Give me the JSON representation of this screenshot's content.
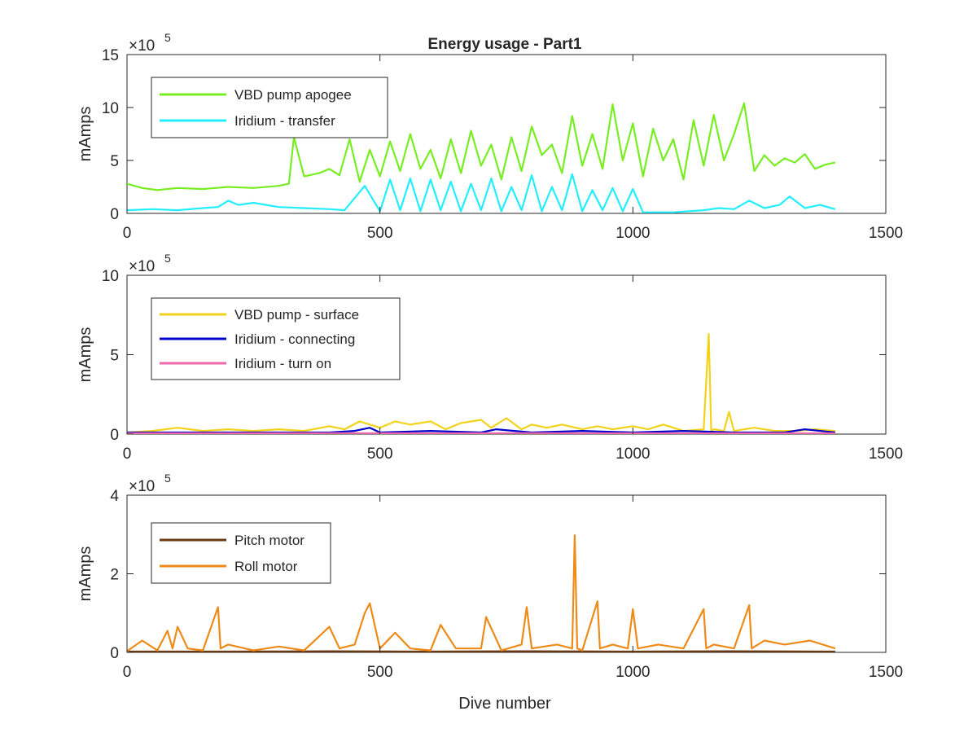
{
  "figure": {
    "title": "Energy usage - Part1",
    "xlabel": "Dive number"
  },
  "chart_data": [
    {
      "type": "line",
      "title": "Energy usage - Part1",
      "xlabel": "",
      "ylabel": "mAmps",
      "y_exponent_label": "×10",
      "y_exponent_power": "5",
      "y_multiplier": 100000,
      "xlim": [
        0,
        1500
      ],
      "ylim": [
        0,
        15
      ],
      "xticks": [
        0,
        500,
        1000,
        1500
      ],
      "xtick_labels": [
        "0",
        "500",
        "1000",
        "1500"
      ],
      "yticks": [
        0,
        5,
        10,
        15
      ],
      "ytick_labels": [
        "0",
        "5",
        "10",
        "15"
      ],
      "grid": false,
      "legend_position": "top-left",
      "series": [
        {
          "name": "VBD pump apogee",
          "color": "#77ee22",
          "x": [
            0,
            30,
            60,
            100,
            150,
            200,
            250,
            300,
            320,
            330,
            350,
            380,
            400,
            420,
            440,
            460,
            480,
            500,
            520,
            540,
            560,
            580,
            600,
            620,
            640,
            660,
            680,
            700,
            720,
            740,
            760,
            780,
            800,
            820,
            840,
            860,
            880,
            900,
            920,
            940,
            960,
            980,
            1000,
            1020,
            1040,
            1060,
            1080,
            1100,
            1120,
            1140,
            1160,
            1180,
            1200,
            1220,
            1240,
            1260,
            1280,
            1300,
            1320,
            1340,
            1360,
            1380,
            1400
          ],
          "y": [
            2.8,
            2.4,
            2.2,
            2.4,
            2.3,
            2.5,
            2.4,
            2.6,
            2.8,
            7.2,
            3.5,
            3.8,
            4.2,
            3.6,
            7.0,
            3.0,
            6.0,
            3.5,
            6.8,
            4.0,
            7.5,
            4.2,
            6.0,
            3.3,
            7.0,
            3.8,
            7.8,
            4.5,
            6.5,
            3.2,
            7.2,
            4.0,
            8.2,
            5.5,
            6.5,
            3.8,
            9.2,
            4.5,
            7.5,
            4.2,
            10.3,
            5.0,
            8.5,
            3.5,
            8.0,
            5.0,
            7.0,
            3.2,
            8.8,
            4.5,
            9.3,
            5.0,
            7.5,
            10.4,
            4.0,
            5.5,
            4.5,
            5.2,
            4.8,
            5.6,
            4.2,
            4.6,
            4.8
          ]
        },
        {
          "name": "Iridium - transfer",
          "color": "#22eeff",
          "x": [
            0,
            50,
            100,
            150,
            180,
            200,
            220,
            250,
            300,
            350,
            400,
            430,
            470,
            500,
            520,
            540,
            560,
            580,
            600,
            620,
            640,
            660,
            680,
            700,
            720,
            740,
            760,
            780,
            800,
            820,
            840,
            860,
            880,
            900,
            920,
            940,
            960,
            980,
            1000,
            1020,
            1050,
            1080,
            1110,
            1140,
            1170,
            1200,
            1230,
            1260,
            1290,
            1310,
            1340,
            1370,
            1400
          ],
          "y": [
            0.3,
            0.4,
            0.3,
            0.5,
            0.6,
            1.2,
            0.8,
            1.0,
            0.6,
            0.5,
            0.4,
            0.3,
            2.6,
            0.2,
            3.2,
            0.3,
            3.3,
            0.2,
            3.2,
            0.3,
            3.0,
            0.2,
            2.8,
            0.3,
            3.3,
            0.2,
            2.5,
            0.3,
            3.6,
            0.2,
            2.5,
            0.3,
            3.7,
            0.2,
            2.2,
            0.3,
            2.4,
            0.2,
            2.3,
            0.1,
            0.1,
            0.1,
            0.2,
            0.3,
            0.5,
            0.4,
            1.2,
            0.5,
            0.8,
            1.6,
            0.5,
            0.8,
            0.4
          ]
        }
      ]
    },
    {
      "type": "line",
      "title": "",
      "xlabel": "",
      "ylabel": "mAmps",
      "y_exponent_label": "×10",
      "y_exponent_power": "5",
      "y_multiplier": 100000,
      "xlim": [
        0,
        1500
      ],
      "ylim": [
        0,
        10
      ],
      "xticks": [
        0,
        500,
        1000,
        1500
      ],
      "xtick_labels": [
        "0",
        "500",
        "1000",
        "1500"
      ],
      "yticks": [
        0,
        5,
        10
      ],
      "ytick_labels": [
        "0",
        "5",
        "10"
      ],
      "grid": false,
      "legend_position": "top-left",
      "series": [
        {
          "name": "VBD pump - surface",
          "color": "#f2d21a",
          "x": [
            0,
            50,
            100,
            150,
            200,
            250,
            300,
            350,
            400,
            430,
            460,
            500,
            530,
            560,
            600,
            630,
            660,
            700,
            720,
            750,
            780,
            800,
            830,
            860,
            900,
            930,
            960,
            1000,
            1030,
            1060,
            1100,
            1140,
            1150,
            1155,
            1160,
            1180,
            1190,
            1200,
            1240,
            1280,
            1320,
            1360,
            1400
          ],
          "y": [
            0.1,
            0.2,
            0.4,
            0.2,
            0.3,
            0.2,
            0.3,
            0.2,
            0.5,
            0.3,
            0.8,
            0.4,
            0.8,
            0.6,
            0.8,
            0.3,
            0.7,
            0.9,
            0.4,
            1.0,
            0.3,
            0.6,
            0.4,
            0.6,
            0.3,
            0.5,
            0.3,
            0.5,
            0.3,
            0.6,
            0.2,
            0.3,
            6.3,
            0.2,
            0.3,
            0.2,
            1.4,
            0.2,
            0.4,
            0.2,
            0.2,
            0.3,
            0.2
          ]
        },
        {
          "name": "Iridium - connecting",
          "color": "#0000cc",
          "x": [
            0,
            100,
            200,
            300,
            400,
            450,
            480,
            500,
            600,
            700,
            730,
            800,
            900,
            1000,
            1100,
            1200,
            1300,
            1340,
            1400
          ],
          "y": [
            0.1,
            0.1,
            0.1,
            0.1,
            0.1,
            0.2,
            0.4,
            0.1,
            0.2,
            0.1,
            0.3,
            0.1,
            0.2,
            0.1,
            0.2,
            0.1,
            0.1,
            0.3,
            0.1
          ]
        },
        {
          "name": "Iridium - turn on",
          "color": "#ee6aaa",
          "x": [
            0,
            200,
            400,
            600,
            800,
            1000,
            1200,
            1400
          ],
          "y": [
            0.05,
            0.05,
            0.06,
            0.05,
            0.06,
            0.05,
            0.05,
            0.05
          ]
        }
      ]
    },
    {
      "type": "line",
      "title": "",
      "xlabel": "Dive number",
      "ylabel": "mAmps",
      "y_exponent_label": "×10",
      "y_exponent_power": "5",
      "y_multiplier": 100000,
      "xlim": [
        0,
        1500
      ],
      "ylim": [
        0,
        4
      ],
      "xticks": [
        0,
        500,
        1000,
        1500
      ],
      "xtick_labels": [
        "0",
        "500",
        "1000",
        "1500"
      ],
      "yticks": [
        0,
        2,
        4
      ],
      "ytick_labels": [
        "0",
        "2",
        "4"
      ],
      "grid": false,
      "legend_position": "top-left",
      "series": [
        {
          "name": "Pitch motor",
          "color": "#6b3a12",
          "x": [
            0,
            200,
            400,
            600,
            800,
            1000,
            1200,
            1400
          ],
          "y": [
            0.02,
            0.02,
            0.03,
            0.02,
            0.03,
            0.02,
            0.03,
            0.02
          ]
        },
        {
          "name": "Roll motor",
          "color": "#ee8a18",
          "x": [
            0,
            30,
            60,
            80,
            90,
            100,
            120,
            150,
            180,
            185,
            200,
            250,
            300,
            350,
            400,
            420,
            450,
            470,
            480,
            500,
            530,
            560,
            600,
            620,
            650,
            700,
            710,
            740,
            780,
            790,
            800,
            850,
            880,
            885,
            890,
            900,
            930,
            935,
            960,
            990,
            1000,
            1010,
            1050,
            1100,
            1140,
            1145,
            1160,
            1200,
            1230,
            1235,
            1260,
            1300,
            1350,
            1400
          ],
          "y": [
            0.03,
            0.3,
            0.05,
            0.55,
            0.1,
            0.65,
            0.1,
            0.05,
            1.15,
            0.1,
            0.2,
            0.05,
            0.15,
            0.05,
            0.65,
            0.1,
            0.2,
            1.0,
            1.25,
            0.1,
            0.5,
            0.1,
            0.05,
            0.7,
            0.1,
            0.1,
            0.9,
            0.05,
            0.2,
            1.15,
            0.1,
            0.2,
            0.1,
            2.98,
            0.1,
            0.05,
            1.3,
            0.1,
            0.2,
            0.1,
            1.1,
            0.1,
            0.2,
            0.1,
            1.1,
            0.1,
            0.2,
            0.1,
            1.2,
            0.1,
            0.3,
            0.2,
            0.3,
            0.1
          ]
        }
      ]
    }
  ]
}
